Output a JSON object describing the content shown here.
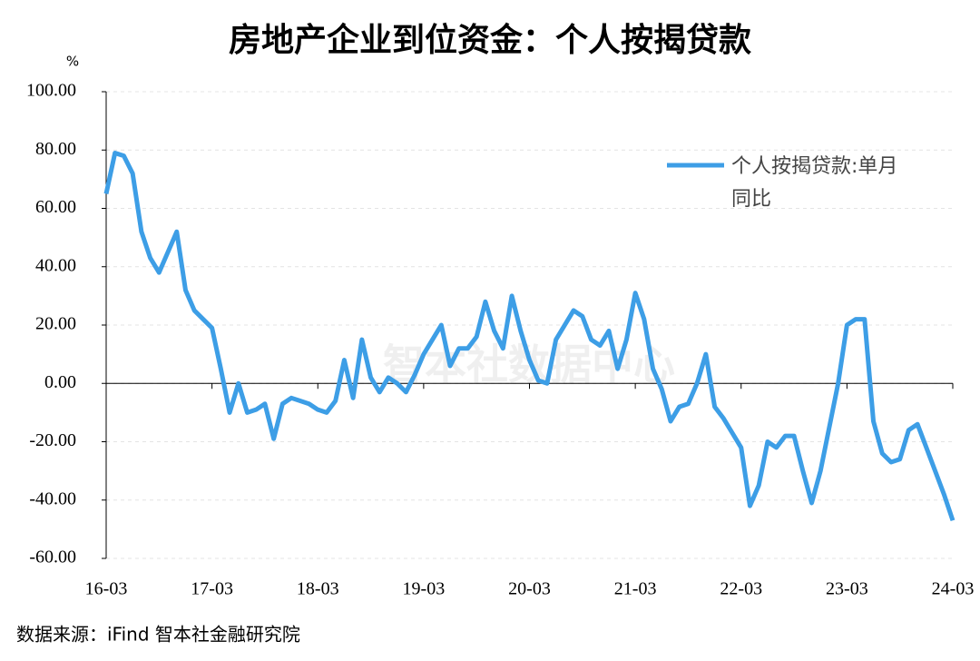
{
  "chart_data": {
    "type": "line",
    "title": "房地产企业到位资金：个人按揭贷款",
    "y_unit": "%",
    "watermark": "智本社数据中心",
    "source": "数据来源：iFind 智本社金融研究院",
    "categories": [
      "16-03",
      null,
      null,
      null,
      null,
      null,
      null,
      null,
      null,
      null,
      null,
      null,
      "17-03",
      null,
      null,
      null,
      null,
      null,
      null,
      null,
      null,
      null,
      null,
      null,
      "18-03",
      null,
      null,
      null,
      null,
      null,
      null,
      null,
      null,
      null,
      null,
      null,
      "19-03",
      null,
      null,
      null,
      null,
      null,
      null,
      null,
      null,
      null,
      null,
      null,
      "20-03",
      null,
      null,
      null,
      null,
      null,
      null,
      null,
      null,
      null,
      null,
      null,
      "21-03",
      null,
      null,
      null,
      null,
      null,
      null,
      null,
      null,
      null,
      null,
      null,
      "22-03",
      null,
      null,
      null,
      null,
      null,
      null,
      null,
      null,
      null,
      null,
      null,
      "23-03",
      null,
      null,
      null,
      null,
      null,
      null,
      null,
      null,
      null,
      null,
      null,
      "24-03"
    ],
    "series": [
      {
        "name": "个人按揭贷款:单月同比",
        "color": "#3d9ee6",
        "values": [
          65,
          79,
          78,
          72,
          52,
          43,
          38,
          45,
          52,
          32,
          25,
          22,
          19,
          5,
          -10,
          0,
          -10,
          -9,
          -7,
          -19,
          -7,
          -5,
          -6,
          -7,
          -9,
          -10,
          -6,
          8,
          -5,
          15,
          2,
          -3,
          2,
          0,
          -3,
          3,
          10,
          15,
          20,
          6,
          12,
          12,
          16,
          28,
          18,
          12,
          30,
          18,
          8,
          1,
          0,
          15,
          20,
          25,
          23,
          15,
          13,
          18,
          5,
          15,
          31,
          22,
          5,
          -2,
          -13,
          -8,
          -7,
          0,
          10,
          -8,
          -12,
          -17,
          -22,
          -42,
          -35,
          -20,
          -22,
          -18,
          -18,
          -30,
          -41,
          -30,
          -15,
          0,
          20,
          22,
          22,
          -13,
          -24,
          -27,
          -26,
          -16,
          -14,
          -22,
          -30,
          -38,
          -47
        ]
      }
    ],
    "ylim": [
      -60,
      100
    ],
    "yticks": [
      {
        "value": -60,
        "label": "-60.00"
      },
      {
        "value": -40,
        "label": "-40.00"
      },
      {
        "value": -20,
        "label": "-20.00"
      },
      {
        "value": 0,
        "label": "0.00"
      },
      {
        "value": 20,
        "label": "20.00"
      },
      {
        "value": 40,
        "label": "40.00"
      },
      {
        "value": 60,
        "label": "60.00"
      },
      {
        "value": 80,
        "label": "80.00"
      },
      {
        "value": 100,
        "label": "100.00"
      }
    ],
    "grid": true,
    "legend": "upper right"
  }
}
